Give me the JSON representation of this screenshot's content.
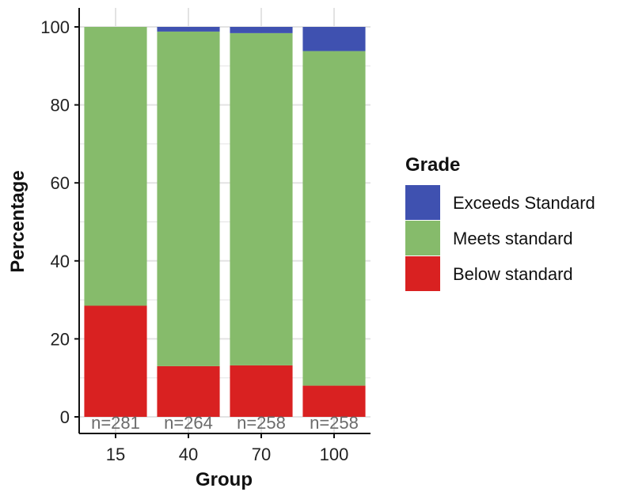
{
  "chart_data": {
    "type": "bar",
    "stacked": true,
    "categories": [
      "15",
      "40",
      "70",
      "100"
    ],
    "series": [
      {
        "name": "Below standard",
        "values": [
          28.5,
          13.0,
          13.2,
          8.0
        ]
      },
      {
        "name": "Meets standard",
        "values": [
          71.5,
          85.8,
          85.2,
          85.8
        ]
      },
      {
        "name": "Exceeds Standard",
        "values": [
          0.0,
          1.2,
          1.6,
          6.2
        ]
      }
    ],
    "n_labels": [
      "n=281",
      "n=264",
      "n=258",
      "n=258"
    ],
    "xlabel": "Group",
    "ylabel": "Percentage",
    "ylim": [
      0,
      100
    ],
    "yticks": [
      0,
      20,
      40,
      60,
      80,
      100
    ],
    "grid": true,
    "legend": {
      "title": "Grade",
      "placement": "right",
      "entries": [
        "Exceeds Standard",
        "Meets standard",
        "Below standard"
      ]
    },
    "colors": {
      "Exceeds Standard": "#3f51b0",
      "Meets standard": "#86bb6b",
      "Below standard": "#d92121",
      "grid": "#e3e3e3",
      "axis": "#111111"
    }
  }
}
